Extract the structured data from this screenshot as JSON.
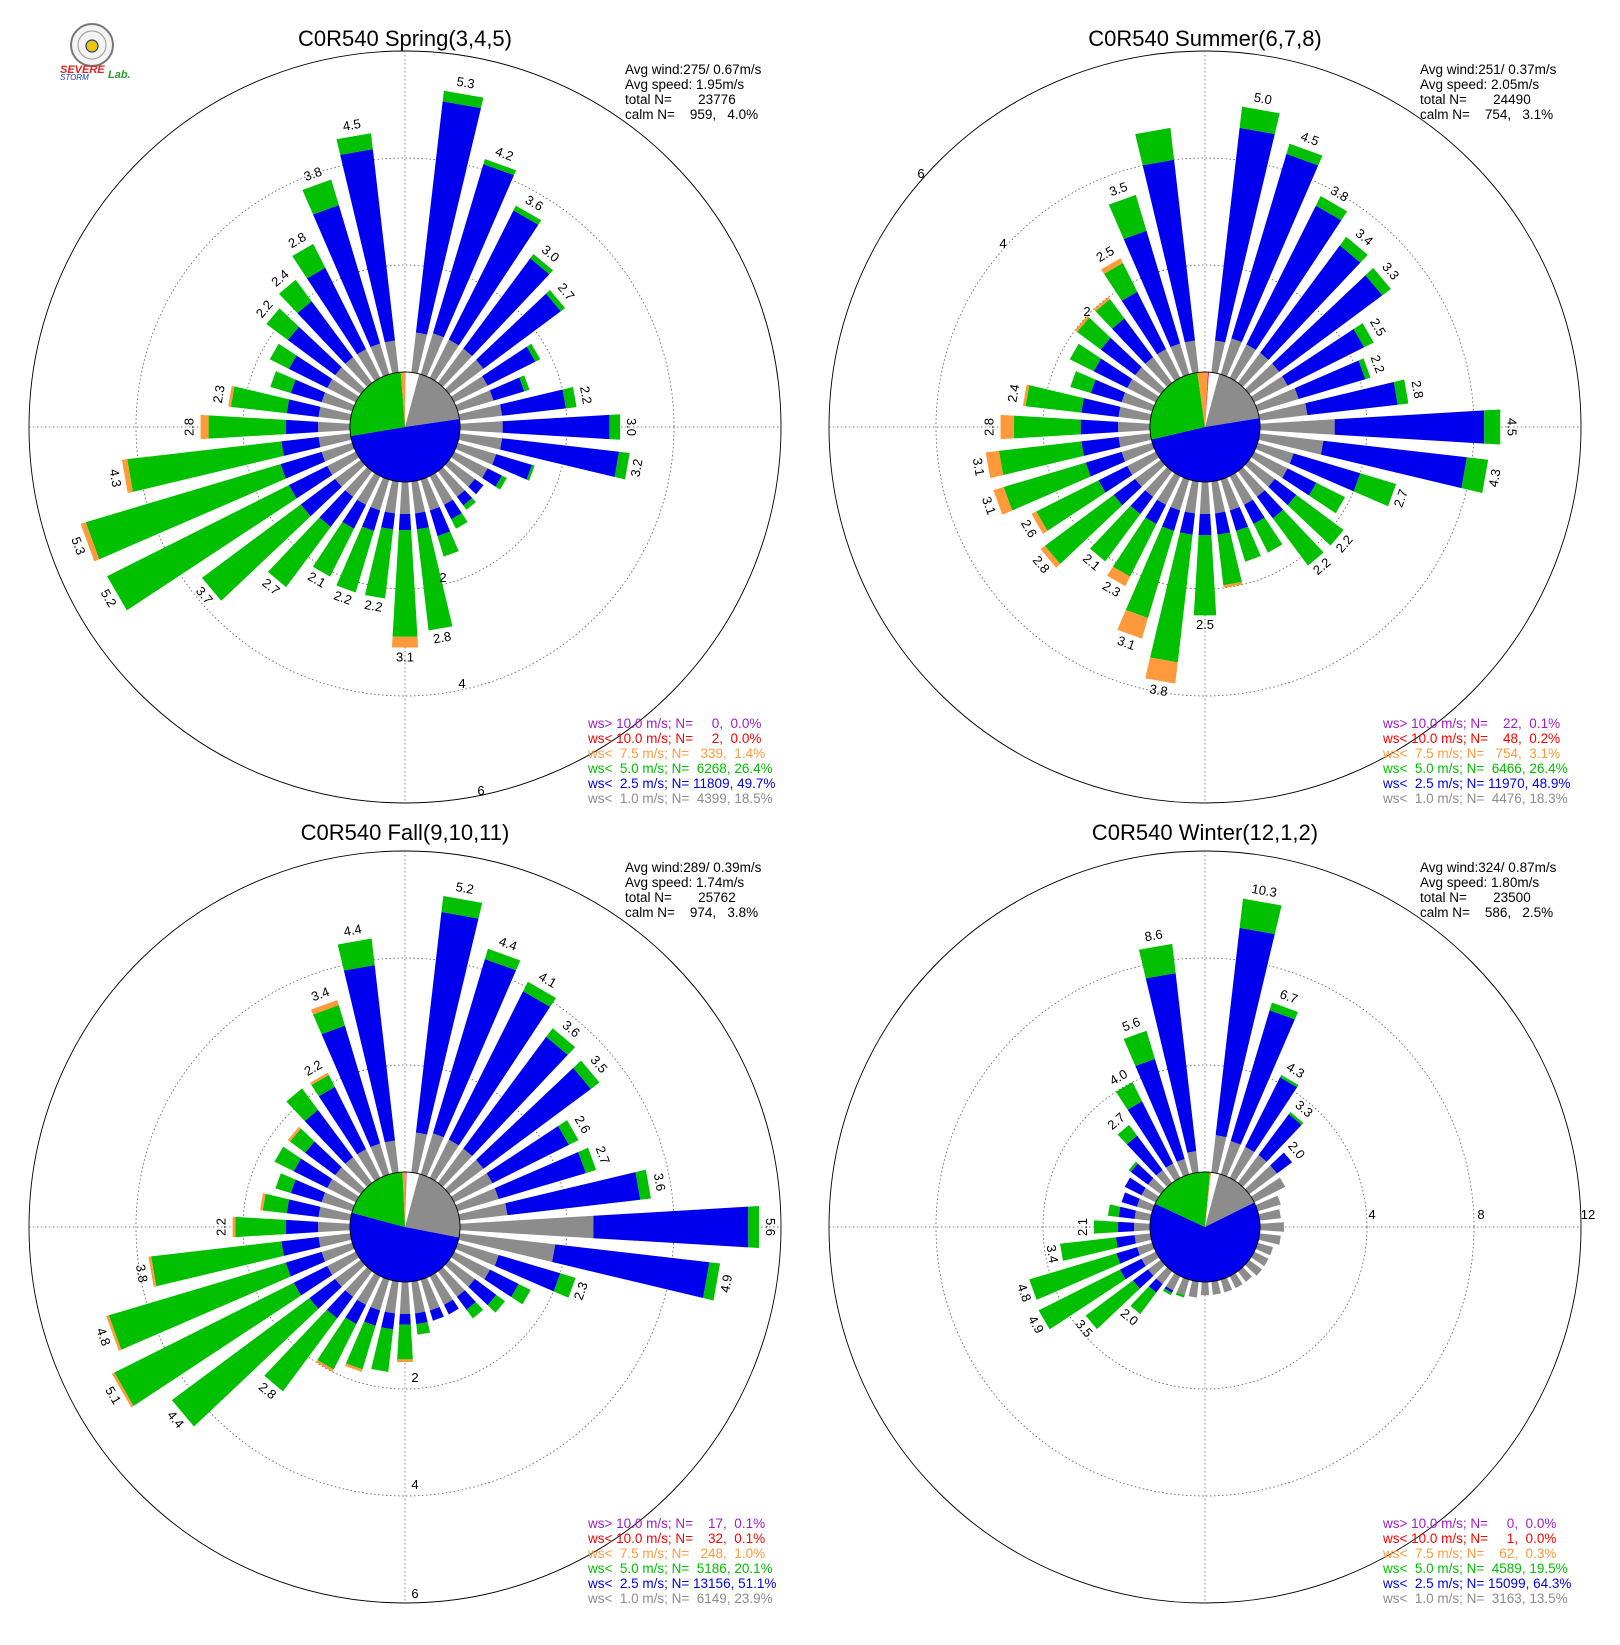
{
  "logo": {
    "line1": "SEVERE",
    "line2": "STORM",
    "line3": "Lab."
  },
  "chart_data": [
    {
      "type": "windrose",
      "title": "C0R540 Spring(3,4,5)",
      "ring_labels": [
        "2",
        "4",
        "6"
      ],
      "ring_max": 6,
      "stats": {
        "avg_wind": "Avg wind:275/ 0.67m/s",
        "avg_speed": "Avg speed: 1.95m/s",
        "total": "total N=       23776",
        "calm": "calm N=    959,   4.0%"
      },
      "totals": [
        5.3,
        4.2,
        3.6,
        3.0,
        2.7,
        1.8,
        1.4,
        2.2,
        3.0,
        3.2,
        1.5,
        1.1,
        0.8,
        0.9,
        1.1,
        1.5,
        2.8,
        3.1,
        2.2,
        2.2,
        2.1,
        2.7,
        3.7,
        5.2,
        5.3,
        4.3,
        2.8,
        2.3,
        1.6,
        1.8,
        2.2,
        2.4,
        2.8,
        3.8,
        4.5
      ],
      "labels": [
        "5.3",
        "4.2",
        "3.6",
        "3.0",
        "2.7",
        "",
        "",
        "2.2",
        "3.0",
        "3.2",
        "",
        "",
        "",
        "",
        "",
        "",
        "2.8",
        "3.1",
        "2.2",
        "2.2",
        "2.1",
        "2.7",
        "3.7",
        "5.2",
        "5.3",
        "4.3",
        "2.8",
        "2.3",
        "",
        "",
        "2.2",
        "2.4",
        "2.8",
        "3.8",
        "4.5"
      ],
      "gray": [
        0.75,
        0.8,
        0.8,
        0.8,
        0.8,
        0.7,
        0.7,
        0.8,
        0.8,
        0.8,
        0.75,
        0.7,
        0.6,
        0.6,
        0.6,
        0.6,
        0.6,
        0.6,
        0.6,
        0.6,
        0.6,
        0.6,
        0.6,
        0.6,
        0.6,
        0.6,
        0.6,
        0.6,
        0.6,
        0.6,
        0.6,
        0.6,
        0.6,
        0.6,
        0.6
      ],
      "blue": [
        4.35,
        3.3,
        2.7,
        2.1,
        1.8,
        1.0,
        0.6,
        1.2,
        2.0,
        2.2,
        0.7,
        0.3,
        0.2,
        0.2,
        0.3,
        0.5,
        0.3,
        0.3,
        0.3,
        0.4,
        0.5,
        0.7,
        0.8,
        0.8,
        0.8,
        0.7,
        0.6,
        0.6,
        0.6,
        0.8,
        1.1,
        1.3,
        1.7,
        2.7,
        3.6
      ],
      "orange": [
        0,
        0,
        0,
        0,
        0,
        0,
        0,
        0,
        0,
        0,
        0,
        0,
        0,
        0,
        0,
        0,
        0,
        0.2,
        0,
        0,
        0,
        0,
        0,
        0,
        0.1,
        0.1,
        0.15,
        0.05,
        0,
        0,
        0,
        0,
        0,
        0,
        0
      ],
      "calm_slices": {
        "gray": 0.185,
        "blue": 0.497,
        "green": 0.264,
        "orange": 0.014
      },
      "legend": [
        {
          "label": "ws> 10.0 m/s; N=     0,  0.0%",
          "color": "#9b1ecb"
        },
        {
          "label": "ws< 10.0 m/s; N=     2,  0.0%",
          "color": "#ff0000"
        },
        {
          "label": "ws<  7.5 m/s; N=   339,  1.4%",
          "color": "#ff9a3c"
        },
        {
          "label": "ws<  5.0 m/s; N=  6268, 26.4%",
          "color": "#00c000"
        },
        {
          "label": "ws<  2.5 m/s; N= 11809, 49.7%",
          "color": "#0000ee"
        },
        {
          "label": "ws<  1.0 m/s; N=  4399, 18.5%",
          "color": "#8c8c8c"
        }
      ]
    },
    {
      "type": "windrose",
      "title": "C0R540 Summer(6,7,8)",
      "ring_labels": [
        "2",
        "4",
        "6"
      ],
      "ring_max": 6,
      "stats": {
        "avg_wind": "Avg wind:251/ 0.37m/s",
        "avg_speed": "Avg speed: 2.05m/s",
        "total": "total N=       24490",
        "calm": "calm N=    754,   3.1%"
      },
      "totals": [
        5.0,
        4.5,
        3.8,
        3.4,
        3.3,
        2.5,
        2.2,
        2.8,
        4.5,
        4.3,
        2.7,
        1.9,
        2.2,
        2.2,
        1.6,
        1.6,
        2.0,
        2.5,
        3.8,
        3.1,
        2.3,
        2.1,
        2.8,
        2.6,
        3.1,
        3.1,
        2.8,
        2.4,
        1.6,
        1.8,
        2.0,
        2.0,
        2.5,
        3.5,
        4.6
      ],
      "labels": [
        "5.0",
        "4.5",
        "3.8",
        "3.4",
        "3.3",
        "2.5",
        "2.2",
        "2.8",
        "4.5",
        "4.3",
        "2.7",
        "",
        "2.2",
        "2.2",
        "",
        "",
        "",
        "2.5",
        "3.8",
        "3.1",
        "2.3",
        "2.1",
        "2.8",
        "2.6",
        "3.1",
        "3.1",
        "2.8",
        "2.4",
        "",
        "",
        "",
        "",
        "2.5",
        "3.5",
        ""
      ],
      "gray": [
        0.6,
        0.7,
        0.7,
        0.7,
        0.7,
        0.7,
        0.8,
        0.9,
        1.4,
        1.2,
        0.7,
        0.7,
        0.6,
        0.6,
        0.6,
        0.6,
        0.6,
        0.6,
        0.6,
        0.6,
        0.6,
        0.6,
        0.6,
        0.6,
        0.6,
        0.6,
        0.6,
        0.6,
        0.6,
        0.6,
        0.6,
        0.6,
        0.6,
        0.6,
        0.6
      ],
      "blue": [
        4.0,
        3.6,
        2.9,
        2.5,
        2.4,
        1.6,
        1.3,
        1.7,
        2.8,
        2.7,
        1.3,
        0.6,
        0.5,
        0.5,
        0.4,
        0.4,
        0.4,
        0.4,
        0.4,
        0.4,
        0.4,
        0.4,
        0.5,
        0.6,
        0.7,
        0.7,
        0.7,
        0.7,
        0.6,
        0.7,
        0.8,
        0.9,
        1.2,
        2.2,
        3.4
      ],
      "orange": [
        0,
        0,
        0,
        0,
        0,
        0,
        0,
        0,
        0,
        0,
        0,
        0,
        0,
        0,
        0,
        0,
        0.05,
        0,
        0.4,
        0.4,
        0.2,
        0,
        0.1,
        0.1,
        0.2,
        0.25,
        0.25,
        0.05,
        0,
        0,
        0.05,
        0.05,
        0.1,
        0,
        0
      ],
      "calm_slices": {
        "gray": 0.183,
        "blue": 0.489,
        "green": 0.264,
        "orange": 0.031,
        "red": 0.002,
        "purple": 0.001
      },
      "legend": [
        {
          "label": "ws> 10.0 m/s; N=    22,  0.1%",
          "color": "#9b1ecb"
        },
        {
          "label": "ws< 10.0 m/s; N=    48,  0.2%",
          "color": "#ff0000"
        },
        {
          "label": "ws<  7.5 m/s; N=   754,  3.1%",
          "color": "#ff9a3c"
        },
        {
          "label": "ws<  5.0 m/s; N=  6466, 26.4%",
          "color": "#00c000"
        },
        {
          "label": "ws<  2.5 m/s; N= 11970, 48.9%",
          "color": "#0000ee"
        },
        {
          "label": "ws<  1.0 m/s; N=  4476, 18.3%",
          "color": "#8c8c8c"
        }
      ]
    },
    {
      "type": "windrose",
      "title": "C0R540 Fall(9,10,11)",
      "ring_labels": [
        "2",
        "4",
        "6"
      ],
      "ring_max": 6,
      "stats": {
        "avg_wind": "Avg wind:289/ 0.39m/s",
        "avg_speed": "Avg speed: 1.74m/s",
        "total": "total N=       25762",
        "calm": "calm N=    974,   3.8%"
      },
      "totals": [
        5.2,
        4.4,
        4.1,
        3.6,
        3.5,
        2.6,
        2.7,
        3.6,
        5.6,
        4.9,
        2.3,
        1.6,
        1.3,
        1.1,
        0.8,
        0.8,
        1.0,
        1.5,
        1.7,
        1.8,
        2.0,
        2.8,
        4.4,
        5.1,
        4.8,
        3.8,
        2.2,
        1.7,
        1.5,
        1.7,
        1.7,
        2.2,
        2.2,
        3.4,
        4.4
      ],
      "labels": [
        "5.2",
        "4.4",
        "4.1",
        "3.6",
        "3.5",
        "2.6",
        "2.7",
        "3.6",
        "5.6",
        "4.9",
        "2.3",
        "",
        "",
        "",
        "",
        "",
        "",
        "",
        "",
        "",
        "",
        "2.8",
        "4.4",
        "5.1",
        "4.8",
        "3.8",
        "2.2",
        "",
        "",
        "",
        "",
        "",
        "2.2",
        "3.4",
        "4.4"
      ],
      "gray": [
        0.75,
        0.8,
        0.8,
        0.8,
        0.8,
        0.8,
        0.8,
        0.9,
        2.5,
        1.8,
        0.8,
        0.75,
        0.6,
        0.6,
        0.6,
        0.6,
        0.6,
        0.6,
        0.6,
        0.6,
        0.6,
        0.6,
        0.6,
        0.6,
        0.6,
        0.6,
        0.6,
        0.6,
        0.6,
        0.6,
        0.6,
        0.6,
        0.6,
        0.6,
        0.6
      ],
      "blue": [
        4.15,
        3.4,
        3.1,
        2.6,
        2.5,
        1.6,
        1.7,
        2.5,
        2.9,
        2.9,
        1.2,
        0.6,
        0.5,
        0.3,
        0.2,
        0.2,
        0.2,
        0.2,
        0.3,
        0.3,
        0.4,
        0.5,
        0.6,
        0.7,
        0.7,
        0.7,
        0.6,
        0.6,
        0.6,
        0.7,
        0.7,
        1.1,
        1.3,
        2.3,
        3.3
      ],
      "orange": [
        0,
        0,
        0,
        0,
        0,
        0,
        0,
        0,
        0,
        0,
        0,
        0,
        0,
        0,
        0,
        0,
        0,
        0.05,
        0,
        0.05,
        0.05,
        0,
        0,
        0.05,
        0.05,
        0.05,
        0.05,
        0.05,
        0,
        0,
        0.05,
        0,
        0.05,
        0.1,
        0
      ],
      "calm_slices": {
        "gray": 0.239,
        "blue": 0.511,
        "green": 0.201,
        "orange": 0.01,
        "red": 0.001,
        "purple": 0.001
      },
      "legend": [
        {
          "label": "ws> 10.0 m/s; N=    17,  0.1%",
          "color": "#9b1ecb"
        },
        {
          "label": "ws< 10.0 m/s; N=    32,  0.1%",
          "color": "#ff0000"
        },
        {
          "label": "ws<  7.5 m/s; N=   248,  1.0%",
          "color": "#ff9a3c"
        },
        {
          "label": "ws<  5.0 m/s; N=  5186, 20.1%",
          "color": "#00c000"
        },
        {
          "label": "ws<  2.5 m/s; N= 13156, 51.1%",
          "color": "#0000ee"
        },
        {
          "label": "ws<  1.0 m/s; N=  6149, 23.9%",
          "color": "#8c8c8c"
        }
      ]
    },
    {
      "type": "windrose",
      "title": "C0R540 Winter(12,1,2)",
      "ring_labels": [
        "4",
        "8",
        "12"
      ],
      "ring_max": 12,
      "stats": {
        "avg_wind": "Avg wind:324/ 0.87m/s",
        "avg_speed": "Avg speed: 1.80m/s",
        "total": "total N=       23500",
        "calm": "calm N=    586,   2.5%"
      },
      "totals": [
        10.3,
        6.7,
        4.3,
        3.3,
        2.0,
        1.3,
        0.9,
        0.8,
        0.9,
        0.8,
        0.6,
        0.6,
        0.6,
        0.5,
        0.5,
        0.5,
        0.5,
        0.5,
        0.6,
        0.7,
        0.8,
        2.0,
        3.5,
        4.9,
        4.8,
        3.4,
        2.1,
        1.6,
        1.2,
        1.3,
        1.5,
        2.7,
        4.0,
        5.6,
        8.6
      ],
      "labels": [
        "10.3",
        "6.7",
        "4.3",
        "3.3",
        "2.0",
        "",
        "",
        "",
        "",
        "",
        "",
        "",
        "",
        "",
        "",
        "",
        "",
        "",
        "",
        "",
        "",
        "2.0",
        "3.5",
        "4.9",
        "4.8",
        "3.4",
        "2.1",
        "",
        "",
        "",
        "",
        "2.7",
        "4.0",
        "5.6",
        "8.6"
      ],
      "gray": [
        1.4,
        1.3,
        1.3,
        1.3,
        1.3,
        1.3,
        0.9,
        0.8,
        0.9,
        0.8,
        0.6,
        0.6,
        0.6,
        0.5,
        0.5,
        0.5,
        0.5,
        0.5,
        0.6,
        0.6,
        0.6,
        0.6,
        0.6,
        0.6,
        0.6,
        0.6,
        0.6,
        0.6,
        0.6,
        0.6,
        0.6,
        0.6,
        0.6,
        0.6,
        0.8
      ],
      "blue": [
        7.8,
        5.1,
        2.9,
        1.9,
        0.7,
        0,
        0,
        0,
        0,
        0,
        0,
        0,
        0,
        0,
        0,
        0,
        0,
        0,
        0,
        0,
        0.1,
        0.4,
        0.7,
        0.9,
        0.8,
        0.7,
        0.6,
        0.6,
        0.6,
        0.7,
        0.8,
        1.6,
        2.6,
        3.9,
        6.7
      ],
      "orange": [
        0,
        0,
        0,
        0,
        0,
        0,
        0,
        0,
        0,
        0,
        0,
        0,
        0,
        0,
        0,
        0,
        0,
        0,
        0,
        0,
        0,
        0,
        0,
        0,
        0,
        0,
        0,
        0,
        0,
        0,
        0,
        0,
        0,
        0,
        0
      ],
      "calm_slices": {
        "gray": 0.135,
        "blue": 0.643,
        "green": 0.195,
        "orange": 0.003
      },
      "legend": [
        {
          "label": "ws> 10.0 m/s; N=     0,  0.0%",
          "color": "#9b1ecb"
        },
        {
          "label": "ws< 10.0 m/s; N=     1,  0.0%",
          "color": "#ff0000"
        },
        {
          "label": "ws<  7.5 m/s; N=    62,  0.3%",
          "color": "#ff9a3c"
        },
        {
          "label": "ws<  5.0 m/s; N=  4589, 19.5%",
          "color": "#00c000"
        },
        {
          "label": "ws<  2.5 m/s; N= 15099, 64.3%",
          "color": "#0000ee"
        },
        {
          "label": "ws<  1.0 m/s; N=  3163, 13.5%",
          "color": "#8c8c8c"
        }
      ]
    }
  ],
  "colors": {
    "gray": "#8c8c8c",
    "blue": "#0000ee",
    "green": "#00c000",
    "orange": "#ff9a3c",
    "red": "#ff0000",
    "purple": "#9b1ecb",
    "text": "#000000"
  }
}
